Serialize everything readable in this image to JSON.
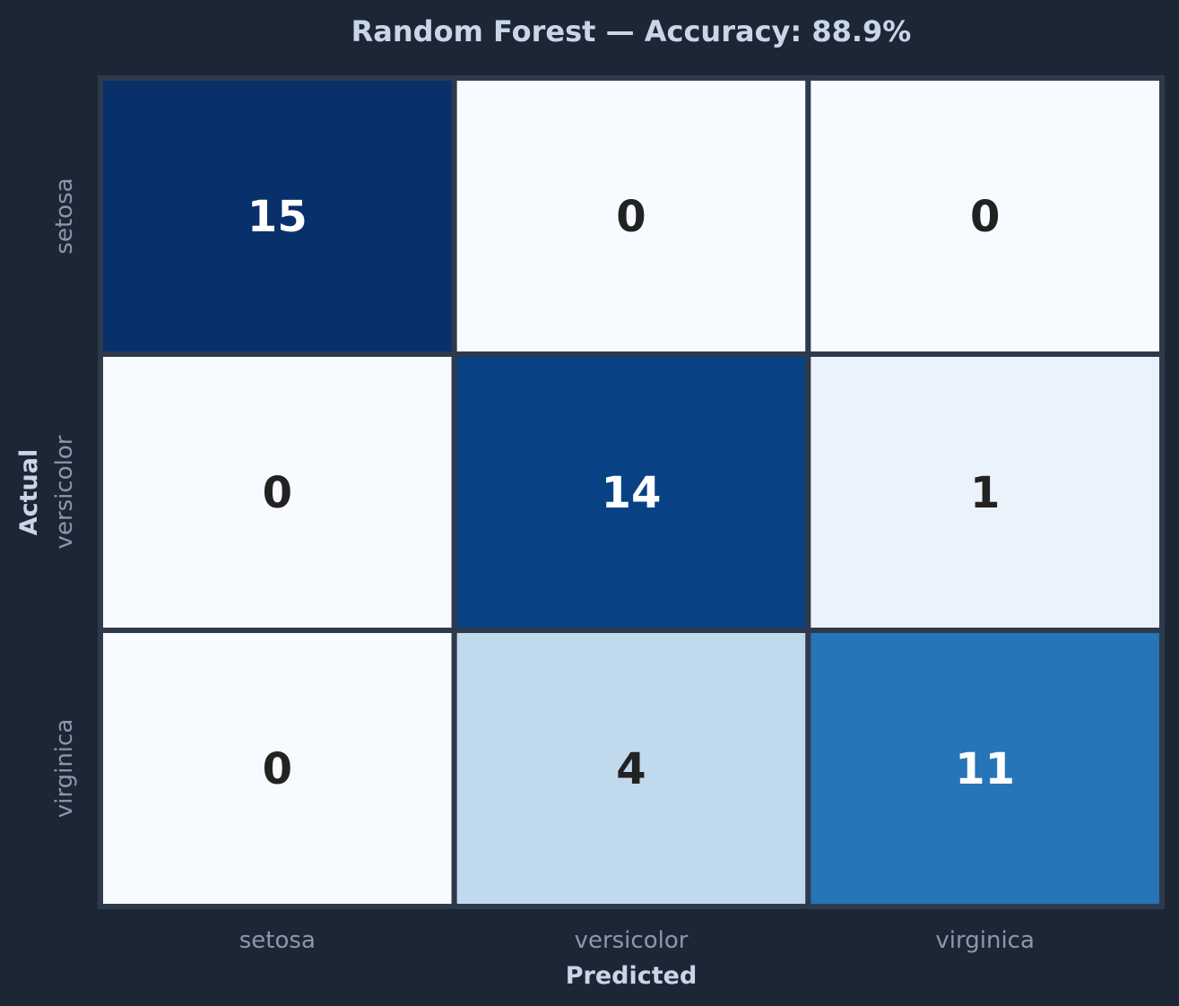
{
  "chart_data": {
    "type": "heatmap",
    "title": "Random Forest — Accuracy: 88.9%",
    "xlabel": "Predicted",
    "ylabel": "Actual",
    "x_categories": [
      "setosa",
      "versicolor",
      "virginica"
    ],
    "y_categories": [
      "setosa",
      "versicolor",
      "virginica"
    ],
    "values": [
      [
        15,
        0,
        0
      ],
      [
        0,
        14,
        1
      ],
      [
        0,
        4,
        11
      ]
    ],
    "colormap": "Blues",
    "value_range": [
      0,
      15
    ],
    "colors": {
      "background": "#1c2736",
      "grid_line": "#2e3a4c",
      "title": "#c9d6e8",
      "tick": "#8b98ab",
      "text_dark": "#222222",
      "text_light": "#ffffff"
    }
  }
}
